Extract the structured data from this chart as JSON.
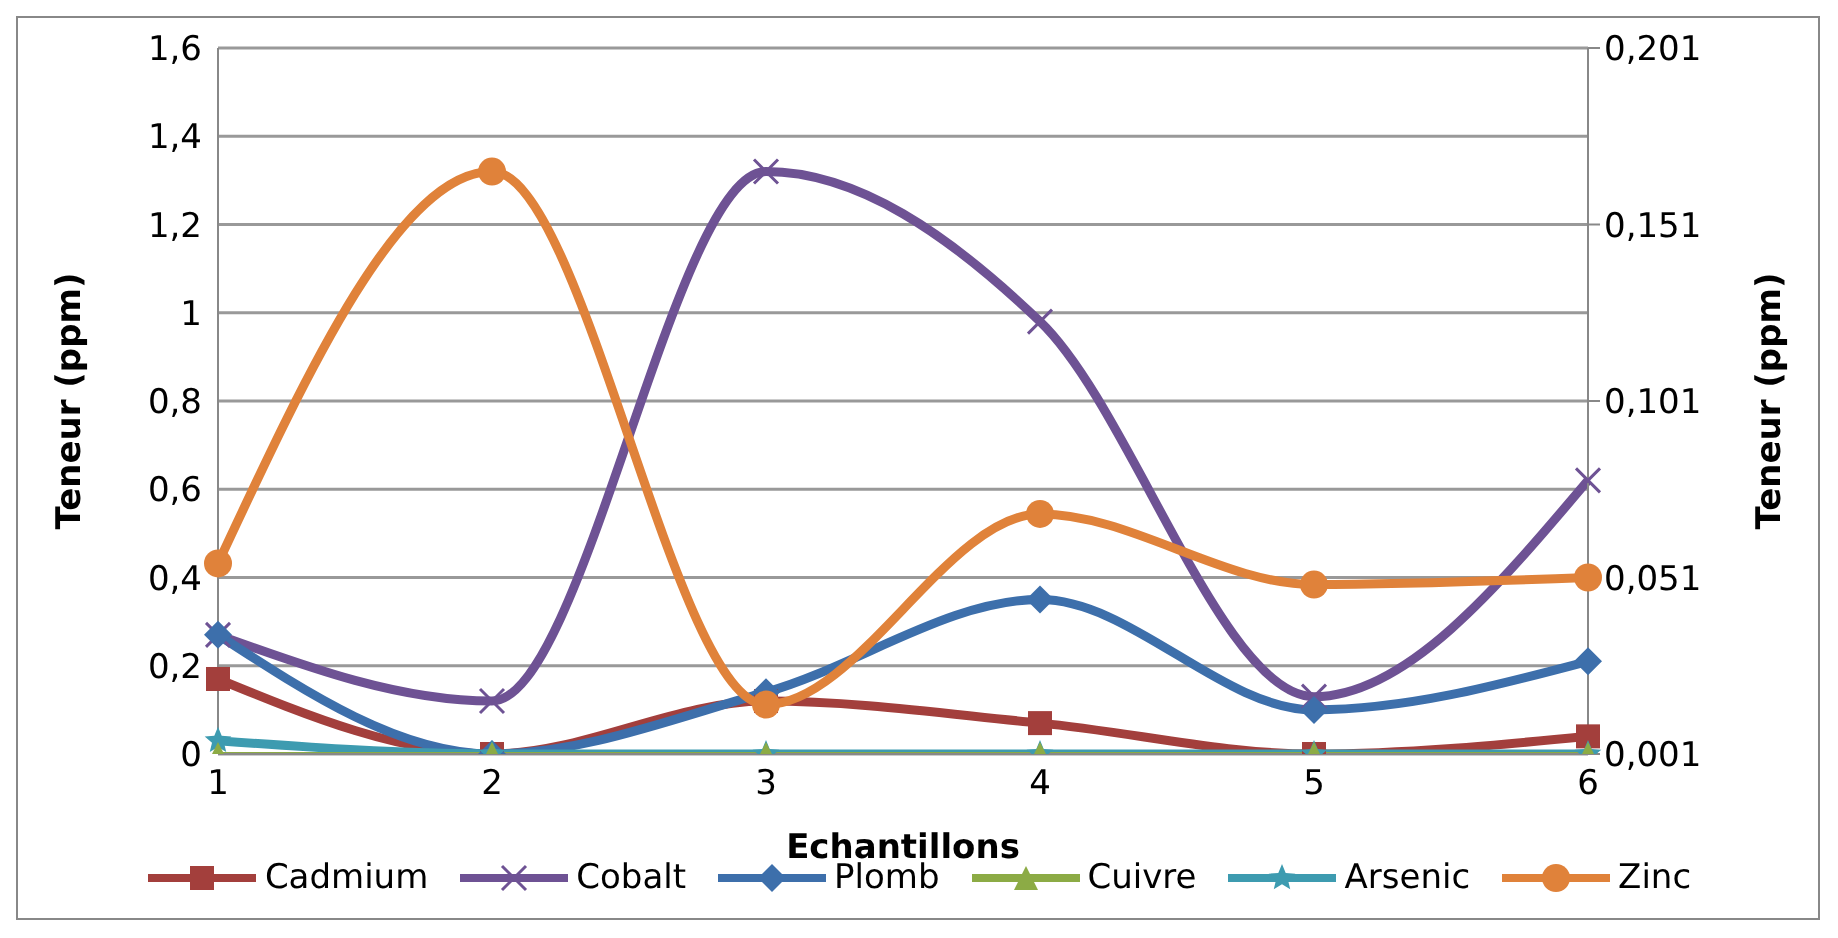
{
  "chart_data": {
    "type": "line",
    "xlabel": "Echantillons",
    "ylabel": "Teneur (ppm)",
    "y2label": "Teneur (ppm)",
    "categories": [
      "1",
      "2",
      "3",
      "4",
      "5",
      "6"
    ],
    "series": [
      {
        "name": "Cadmium",
        "color": "#a33f3c",
        "marker": "square",
        "values": [
          0.17,
          0,
          0.12,
          0.07,
          0,
          0.04
        ]
      },
      {
        "name": "Cobalt",
        "color": "#6e5294",
        "marker": "cross",
        "values": [
          0.27,
          0.12,
          1.32,
          0.98,
          0.13,
          0.62
        ]
      },
      {
        "name": "Plomb",
        "color": "#3d6fab",
        "marker": "diamond",
        "values": [
          0.27,
          0,
          0.14,
          0.35,
          0.1,
          0.21
        ]
      },
      {
        "name": "Cuivre",
        "color": "#8cab45",
        "marker": "triangle",
        "values": [
          0,
          0,
          0,
          0,
          0,
          0
        ]
      },
      {
        "name": "Arsenic",
        "color": "#3d9bb0",
        "marker": "star",
        "values": [
          0.03,
          0,
          0,
          0,
          0,
          0
        ]
      },
      {
        "name": "Zinc",
        "color": "#e0823a",
        "marker": "circle",
        "axis": "y2",
        "values": [
          0.055,
          0.166,
          0.015,
          0.069,
          0.049,
          0.051
        ]
      }
    ],
    "ylim": [
      0,
      1.6
    ],
    "yticks": [
      {
        "value": 0,
        "label": "0"
      },
      {
        "value": 0.2,
        "label": "0,2"
      },
      {
        "value": 0.4,
        "label": "0,4"
      },
      {
        "value": 0.6,
        "label": "0,6"
      },
      {
        "value": 0.8,
        "label": "0,8"
      },
      {
        "value": 1,
        "label": "1"
      },
      {
        "value": 1.2,
        "label": "1,2"
      },
      {
        "value": 1.4,
        "label": "1,4"
      },
      {
        "value": 1.6,
        "label": "1,6"
      }
    ],
    "y2lim": [
      0.001,
      0.201
    ],
    "y2ticks": [
      {
        "value": 0.001,
        "label": "0,001"
      },
      {
        "value": 0.051,
        "label": "0,051"
      },
      {
        "value": 0.101,
        "label": "0,101"
      },
      {
        "value": 0.151,
        "label": "0,151"
      },
      {
        "value": 0.201,
        "label": "0,201"
      }
    ],
    "grid": "y",
    "legend": "bottom"
  }
}
